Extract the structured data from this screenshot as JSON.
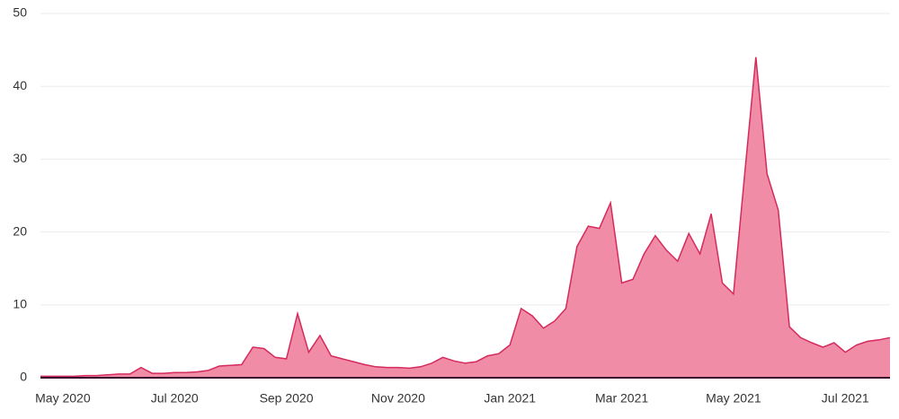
{
  "chart_data": {
    "type": "area",
    "categories": [
      null,
      null,
      "May 2020",
      null,
      null,
      null,
      null,
      null,
      null,
      null,
      null,
      null,
      "Jul 2020",
      null,
      null,
      null,
      null,
      null,
      null,
      null,
      null,
      null,
      "Sep 2020",
      null,
      null,
      null,
      null,
      null,
      null,
      null,
      null,
      null,
      "Nov 2020",
      null,
      null,
      null,
      null,
      null,
      null,
      null,
      null,
      null,
      "Jan 2021",
      null,
      null,
      null,
      null,
      null,
      null,
      null,
      null,
      null,
      "Mar 2021",
      null,
      null,
      null,
      null,
      null,
      null,
      null,
      null,
      null,
      "May 2021",
      null,
      null,
      null,
      null,
      null,
      null,
      null,
      null,
      null,
      "Jul 2021",
      null,
      null,
      null,
      null
    ],
    "values": [
      0.2,
      0.2,
      0.2,
      0.2,
      0.3,
      0.3,
      0.4,
      0.5,
      0.5,
      1.4,
      0.6,
      0.6,
      0.7,
      0.7,
      0.8,
      1.0,
      1.6,
      1.7,
      1.8,
      4.2,
      4.0,
      2.8,
      2.6,
      8.8,
      3.5,
      5.8,
      3.0,
      2.6,
      2.2,
      1.8,
      1.5,
      1.4,
      1.4,
      1.3,
      1.5,
      2.0,
      2.8,
      2.3,
      2.0,
      2.2,
      3.0,
      3.3,
      4.5,
      9.5,
      8.5,
      6.8,
      7.8,
      9.5,
      18,
      20.8,
      20.5,
      24,
      13,
      13.5,
      17,
      19.5,
      17.5,
      16,
      19.8,
      17,
      22.5,
      13,
      11.5,
      28,
      44,
      28,
      23,
      7,
      5.5,
      4.8,
      4.2,
      4.8,
      3.5,
      4.5,
      5,
      5.2,
      5.5
    ],
    "color": "#f08ca6",
    "line_color": "#d42a5c",
    "ylim": [
      0,
      50
    ],
    "yticks": [
      0,
      10,
      20,
      30,
      40,
      50
    ],
    "grid": true
  }
}
